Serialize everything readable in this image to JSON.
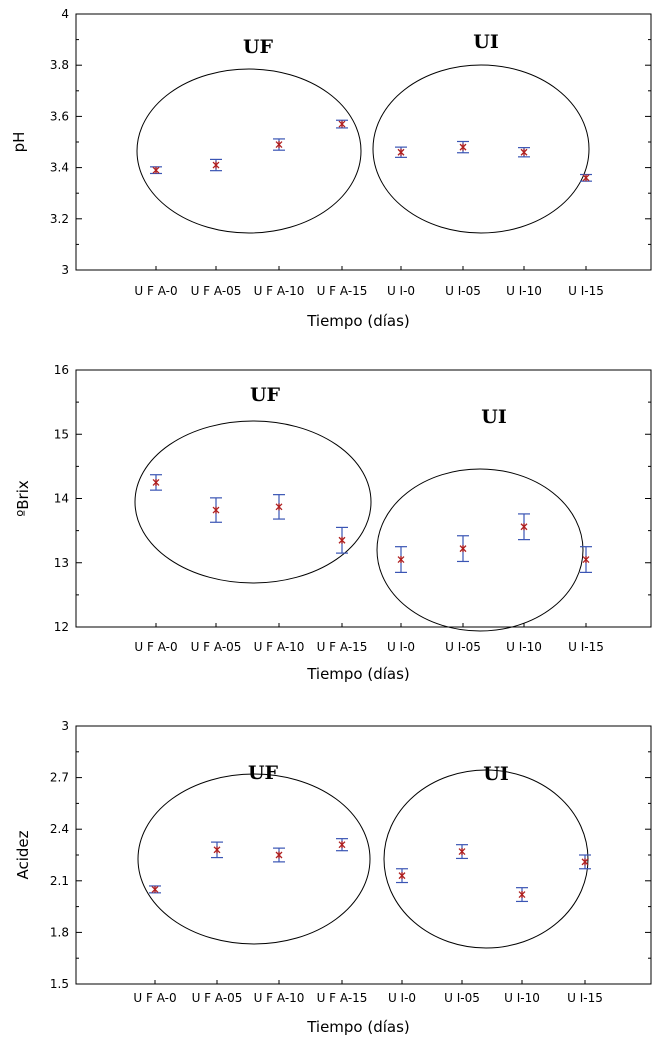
{
  "colors": {
    "errorbar": "#3a55b4",
    "point": "#b02020",
    "frame": "#000000"
  },
  "chart_data": [
    {
      "type": "scatter",
      "title": "",
      "xlabel": "Tiempo (días)",
      "ylabel": "pH",
      "ylim": [
        3,
        4
      ],
      "yticks": [
        "3",
        "3.2",
        "3.4",
        "3.6",
        "3.8",
        "4"
      ],
      "yticks_values": [
        3,
        3.2,
        3.4,
        3.6,
        3.8,
        4
      ],
      "categories": [
        "U F A-0",
        "U F A-05",
        "U F A-10",
        "U F A-15",
        "U I-0",
        "U I-05",
        "U I-10",
        "U I-15"
      ],
      "values": [
        3.39,
        3.41,
        3.49,
        3.57,
        3.46,
        3.48,
        3.46,
        3.36
      ],
      "error": [
        0.013,
        0.022,
        0.022,
        0.015,
        0.02,
        0.022,
        0.018,
        0.013
      ],
      "groups": [
        {
          "label": "UF",
          "members": [
            0,
            1,
            2,
            3
          ]
        },
        {
          "label": "UI",
          "members": [
            4,
            5,
            6,
            7
          ]
        }
      ]
    },
    {
      "type": "scatter",
      "title": "",
      "xlabel": "Tiempo (días)",
      "ylabel": "ºBrix",
      "ylim": [
        12,
        16
      ],
      "yticks": [
        "12",
        "13",
        "14",
        "15",
        "16"
      ],
      "yticks_values": [
        12,
        13,
        14,
        15,
        16
      ],
      "categories": [
        "U F A-0",
        "U F A-05",
        "U F A-10",
        "U F A-15",
        "U I-0",
        "U I-05",
        "U I-10",
        "U I-15"
      ],
      "values": [
        14.25,
        13.82,
        13.87,
        13.35,
        13.05,
        13.22,
        13.56,
        13.05
      ],
      "error": [
        0.12,
        0.19,
        0.19,
        0.2,
        0.2,
        0.2,
        0.2,
        0.2
      ],
      "groups": [
        {
          "label": "UF",
          "members": [
            0,
            1,
            2,
            3
          ]
        },
        {
          "label": "UI",
          "members": [
            4,
            5,
            6,
            7
          ]
        }
      ]
    },
    {
      "type": "scatter",
      "title": "",
      "xlabel": "Tiempo (días)",
      "ylabel": "Acidez",
      "ylim": [
        1.5,
        3
      ],
      "yticks": [
        "1.5",
        "1.8",
        "2.1",
        "2.4",
        "2.7",
        "3"
      ],
      "yticks_values": [
        1.5,
        1.8,
        2.1,
        2.4,
        2.7,
        3
      ],
      "categories": [
        "U F A-0",
        "U F A-05",
        "U F A-10",
        "U F A-15",
        "U I-0",
        "U I-05",
        "U I-10",
        "U I-15"
      ],
      "values": [
        2.05,
        2.28,
        2.25,
        2.31,
        2.13,
        2.27,
        2.02,
        2.21
      ],
      "error": [
        0.02,
        0.045,
        0.04,
        0.035,
        0.04,
        0.04,
        0.04,
        0.04
      ],
      "groups": [
        {
          "label": "UF",
          "members": [
            0,
            1,
            2,
            3
          ]
        },
        {
          "label": "UI",
          "members": [
            4,
            5,
            6,
            7
          ]
        }
      ]
    }
  ]
}
